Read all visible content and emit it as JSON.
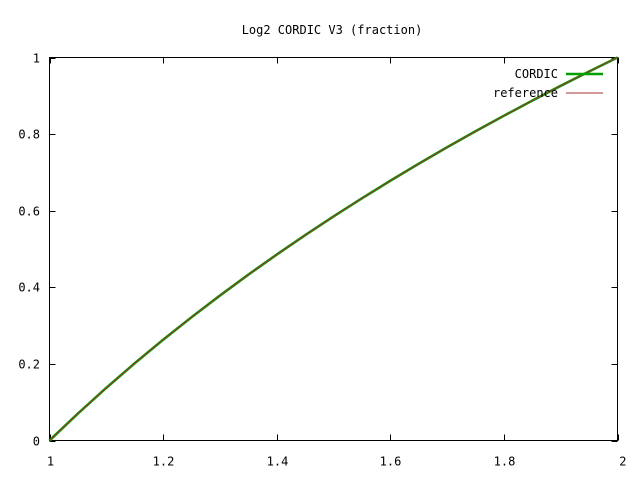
{
  "chart_data": {
    "type": "line",
    "title": "Log2 CORDIC V3 (fraction)",
    "xlabel": "",
    "ylabel": "",
    "xlim": [
      1,
      2
    ],
    "ylim": [
      0,
      1
    ],
    "xticks": [
      "1",
      "1.2",
      "1.4",
      "1.6",
      "1.8",
      "2"
    ],
    "yticks": [
      "0",
      "0.2",
      "0.4",
      "0.6",
      "0.8",
      "1"
    ],
    "grid": false,
    "legend_position": "top-right",
    "x": [
      1.0,
      1.05,
      1.1,
      1.15,
      1.2,
      1.25,
      1.3,
      1.35,
      1.4,
      1.45,
      1.5,
      1.55,
      1.6,
      1.65,
      1.7,
      1.75,
      1.8,
      1.85,
      1.9,
      1.95,
      2.0
    ],
    "series": [
      {
        "name": "CORDIC",
        "color": "#00a000",
        "values": [
          0.0,
          0.0704,
          0.1375,
          0.2016,
          0.263,
          0.3219,
          0.3785,
          0.433,
          0.4854,
          0.5361,
          0.585,
          0.6323,
          0.6781,
          0.7225,
          0.7655,
          0.8074,
          0.848,
          0.8875,
          0.926,
          0.9635,
          1.0
        ]
      },
      {
        "name": "reference",
        "color": "#a03030",
        "values": [
          0.0,
          0.0704,
          0.1375,
          0.2016,
          0.263,
          0.3219,
          0.3785,
          0.433,
          0.4854,
          0.5361,
          0.585,
          0.6323,
          0.6781,
          0.7225,
          0.7655,
          0.8074,
          0.848,
          0.8875,
          0.926,
          0.9635,
          1.0
        ]
      }
    ]
  }
}
